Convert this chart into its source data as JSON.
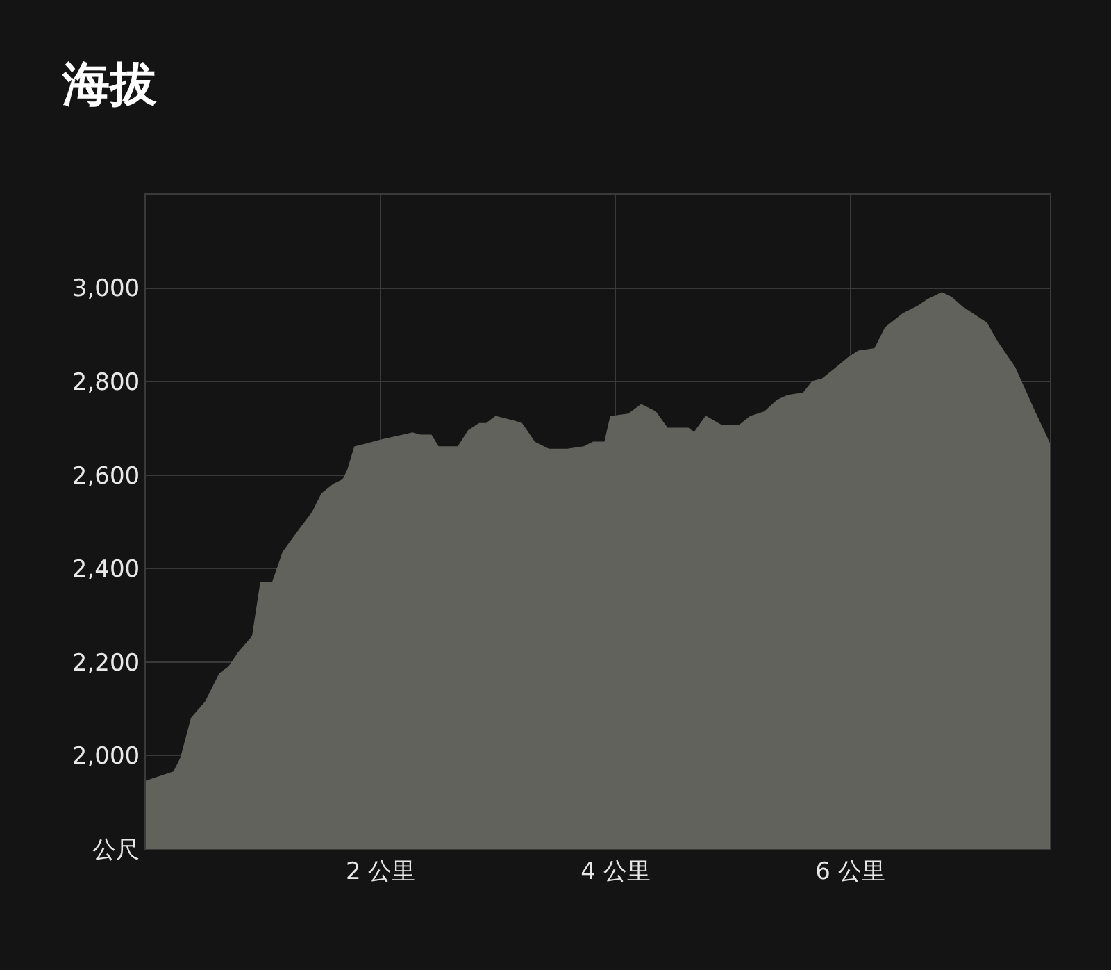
{
  "chart_data": {
    "type": "area",
    "title": "海拔",
    "x": [
      0,
      0.12,
      0.24,
      0.3,
      0.39,
      0.51,
      0.63,
      0.71,
      0.79,
      0.91,
      0.98,
      1.08,
      1.17,
      1.3,
      1.42,
      1.5,
      1.6,
      1.68,
      1.72,
      1.78,
      1.86,
      2.01,
      2.19,
      2.27,
      2.34,
      2.43,
      2.49,
      2.57,
      2.66,
      2.75,
      2.84,
      2.9,
      2.98,
      3.14,
      3.2,
      3.31,
      3.43,
      3.59,
      3.73,
      3.81,
      3.91,
      3.96,
      4.11,
      4.22,
      4.34,
      4.44,
      4.62,
      4.67,
      4.77,
      4.91,
      5.05,
      5.15,
      5.27,
      5.38,
      5.47,
      5.6,
      5.68,
      5.76,
      5.86,
      5.98,
      6.07,
      6.21,
      6.3,
      6.45,
      6.57,
      6.66,
      6.78,
      6.86,
      6.95,
      7.04,
      7.16,
      7.25,
      7.4,
      7.57,
      7.7
    ],
    "series": [
      {
        "color": "#62625d",
        "values": [
          1945,
          1955,
          1965,
          1995,
          2080,
          2115,
          2175,
          2190,
          2220,
          2255,
          2370,
          2370,
          2435,
          2480,
          2520,
          2560,
          2580,
          2590,
          2610,
          2660,
          2665,
          2675,
          2685,
          2690,
          2685,
          2685,
          2660,
          2660,
          2660,
          2695,
          2710,
          2710,
          2725,
          2715,
          2710,
          2670,
          2655,
          2655,
          2660,
          2670,
          2670,
          2725,
          2730,
          2750,
          2735,
          2700,
          2700,
          2690,
          2725,
          2705,
          2705,
          2725,
          2735,
          2760,
          2770,
          2775,
          2800,
          2805,
          2825,
          2850,
          2865,
          2870,
          2915,
          2945,
          2960,
          2975,
          2990,
          2980,
          2960,
          2945,
          2925,
          2885,
          2830,
          2735,
          2665
        ]
      }
    ],
    "xlim": [
      0,
      7.7
    ],
    "xticks": [
      {
        "value": 2,
        "label": "2 公里"
      },
      {
        "value": 4,
        "label": "4 公里"
      },
      {
        "value": 6,
        "label": "6 公里"
      }
    ],
    "ylim": [
      1800,
      3200
    ],
    "yticks": [
      {
        "value": 1800,
        "label": "公尺"
      },
      {
        "value": 2000,
        "label": "2,000"
      },
      {
        "value": 2200,
        "label": "2,200"
      },
      {
        "value": 2400,
        "label": "2,400"
      },
      {
        "value": 2600,
        "label": "2,600"
      },
      {
        "value": 2800,
        "label": "2,800"
      },
      {
        "value": 3000,
        "label": "3,000"
      },
      {
        "value": 3200,
        "label": null
      }
    ],
    "grid": true,
    "legend": false
  }
}
